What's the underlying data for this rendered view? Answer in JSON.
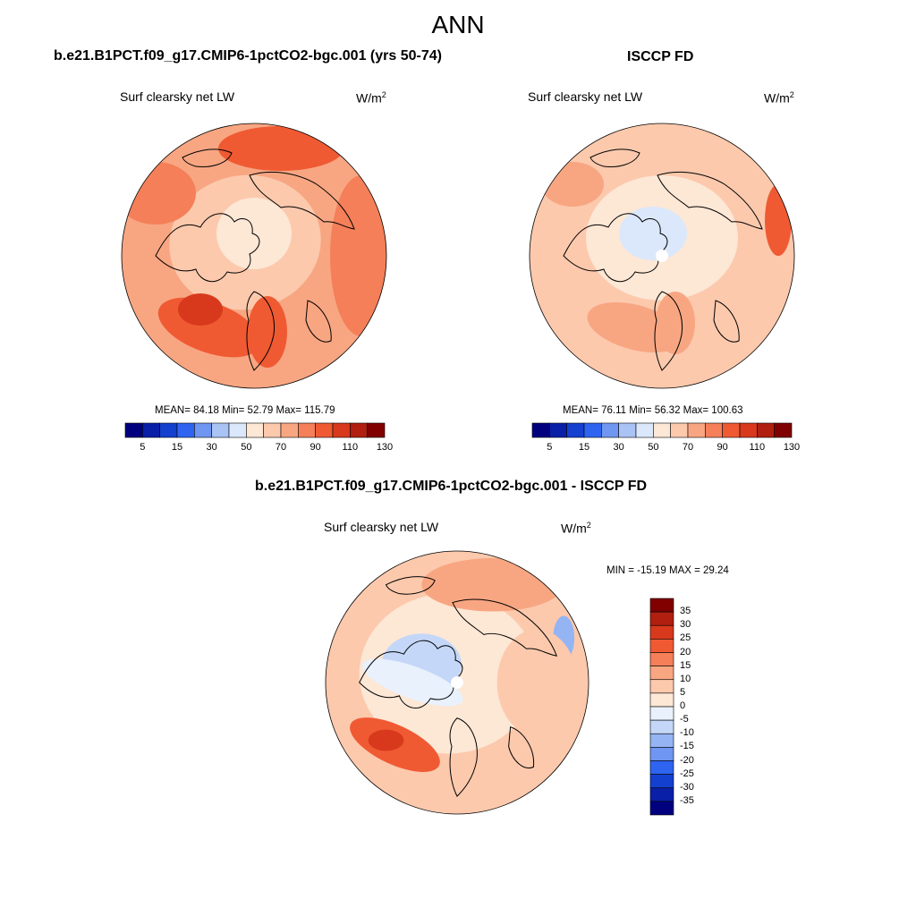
{
  "figure": {
    "title": "ANN",
    "panels": [
      {
        "id": "model",
        "title": "b.e21.B1PCT.f09_g17.CMIP6-1pctCO2-bgc.001 (yrs 50-74)",
        "variable": "Surf clearsky net LW",
        "units_base": "W/m",
        "units_exp": "2",
        "stats": "MEAN=  84.18  Min=  52.79  Max= 115.79",
        "mean": 84.18,
        "min": 52.79,
        "max": 115.79
      },
      {
        "id": "obs",
        "title": "ISCCP FD",
        "variable": "Surf clearsky net LW",
        "units_base": "W/m",
        "units_exp": "2",
        "stats": "MEAN=  76.11  Min=  56.32  Max= 100.63",
        "mean": 76.11,
        "min": 56.32,
        "max": 100.63
      },
      {
        "id": "diff",
        "title": "b.e21.B1PCT.f09_g17.CMIP6-1pctCO2-bgc.001 - ISCCP FD",
        "variable": "Surf clearsky net LW",
        "units_base": "W/m",
        "units_exp": "2",
        "stats": "MIN = -15.19 MAX =  29.24",
        "min": -15.19,
        "max": 29.24
      }
    ],
    "colorbar_abs": {
      "tick_labels": [
        "5",
        "15",
        "30",
        "50",
        "70",
        "90",
        "110",
        "130"
      ],
      "colors": [
        "#00007f",
        "#0a1fa8",
        "#1440d0",
        "#2e64f0",
        "#6f96f0",
        "#a9c3f5",
        "#dbe8fb",
        "#fde7d5",
        "#fcc9ad",
        "#f8a682",
        "#f47f59",
        "#ef5a33",
        "#d8391c",
        "#b01f0f",
        "#800000"
      ]
    },
    "colorbar_diff": {
      "tick_labels": [
        "35",
        "30",
        "25",
        "20",
        "15",
        "10",
        "5",
        "0",
        "-5",
        "-10",
        "-15",
        "-20",
        "-25",
        "-30",
        "-35"
      ],
      "colors": [
        "#800000",
        "#b01f0f",
        "#d8391c",
        "#ef5a33",
        "#f47f59",
        "#f8a682",
        "#fcc9ad",
        "#fde7d5",
        "#e9f1fd",
        "#c4d7f8",
        "#94b4f3",
        "#6f96f0",
        "#2e64f0",
        "#1440d0",
        "#0a1fa8",
        "#00007f"
      ]
    }
  }
}
